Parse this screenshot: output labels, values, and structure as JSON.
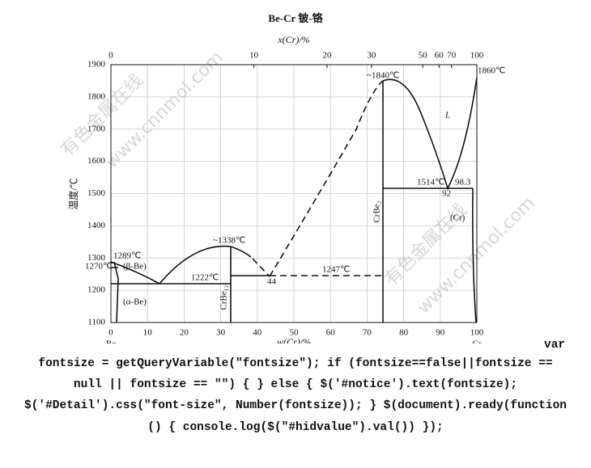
{
  "figure": {
    "title": "Be-Cr  铍-铬",
    "top_axis_label": "x(Cr)/%",
    "bottom_axis_label": "w(Cr)/%",
    "y_axis_label": "温度/℃",
    "xticks": [
      0,
      10,
      20,
      30,
      40,
      50,
      60,
      70,
      80,
      90,
      100
    ],
    "top_ticks": [
      0,
      10,
      20,
      30,
      50,
      60,
      70,
      100
    ],
    "yticks": [
      1100,
      1200,
      1300,
      1400,
      1500,
      1600,
      1700,
      1800,
      1900
    ],
    "annotations": {
      "peak_crbe2": "~1840℃",
      "cr_melting": "1860℃",
      "liquid": "L",
      "eutectic_cr": "1514℃",
      "eutectic_cr_comp": "92",
      "cr_solubility": "98.3",
      "cr_phase": "(Cr)",
      "crbe2": "CrBe₂",
      "peritectic": "1247℃",
      "peritectic_comp": "44",
      "peak_crbe12": "~1338℃",
      "eutectic_be": "1222℃",
      "crbe12": "CrBe₁₂",
      "be_melting": "1289℃",
      "be_transition": "1270℃",
      "beta_be": "(β-Be)",
      "alpha_be": "(α-Be)",
      "be": "Be",
      "cr": "Cr"
    },
    "watermarks": [
      "有色金属在线",
      "www.cnnmol.com",
      "有色金属在线",
      "www.cnnmol.com"
    ]
  },
  "code": {
    "lines": [
      "var",
      "fontsize = getQueryVariable(\"fontsize\"); if (fontsize==false||fontsize ==",
      "null || fontsize == \"\") { } else { $('#notice').text(fontsize);",
      "$('#Detail').css(\"font-size\", Number(fontsize)); } $(document).ready(function",
      "() { console.log($(\"#hidvalue\").val()) });"
    ]
  }
}
